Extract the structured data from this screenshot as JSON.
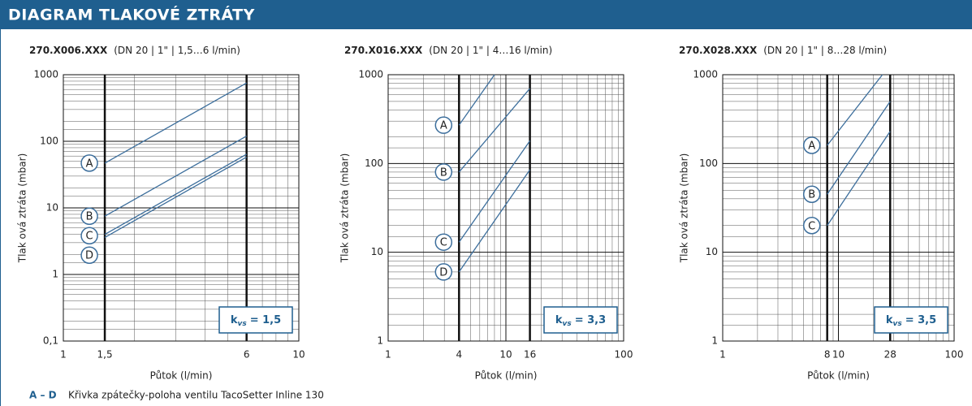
{
  "header": {
    "title": "DIAGRAM TLAKOVÉ ZTRÁTY"
  },
  "chart_data": [
    {
      "type": "line",
      "title": "270.X006.XXX",
      "subtitle": "(DN 20 | 1\" | 1,5…6 l/min)",
      "xlabel": "Půtok (l/min)",
      "ylabel": "Tlak ová ztráta (mbar)",
      "xscale": "log",
      "yscale": "log",
      "grid": true,
      "minor_grid": true,
      "xlim": [
        1,
        10
      ],
      "ylim": [
        0.1,
        1000
      ],
      "xticks": [
        1,
        {
          "value": 1.5,
          "label": "1,5"
        },
        6,
        10
      ],
      "yticks": [
        {
          "value": 0.1,
          "label": "0,1"
        },
        1,
        10,
        100,
        1000
      ],
      "kvs": {
        "symbol": "k",
        "sub": "vs",
        "value": "= 1,5"
      },
      "series": [
        {
          "name": "A",
          "color": "#3c6e9c",
          "x": [
            1.5,
            6
          ],
          "values": [
            47,
            750
          ]
        },
        {
          "name": "B",
          "color": "#3c6e9c",
          "x": [
            1.5,
            6
          ],
          "values": [
            7.5,
            120
          ]
        },
        {
          "name": "C",
          "color": "#3c6e9c",
          "x": [
            1.5,
            6
          ],
          "values": [
            4,
            64
          ]
        },
        {
          "name": "D",
          "color": "#3c6e9c",
          "x": [
            1.5,
            6
          ],
          "values": [
            3.6,
            58
          ]
        }
      ]
    },
    {
      "type": "line",
      "title": "270.X016.XXX",
      "subtitle": "(DN 20 | 1\" | 4…16 l/min)",
      "xlabel": "Půtok (l/min)",
      "ylabel": "Tlak ová ztráta (mbar)",
      "xscale": "log",
      "yscale": "log",
      "grid": true,
      "minor_grid": true,
      "xlim": [
        1,
        100
      ],
      "ylim": [
        1,
        1000
      ],
      "xticks": [
        1,
        4,
        10,
        16,
        100
      ],
      "yticks": [
        1,
        10,
        100,
        1000
      ],
      "kvs": {
        "symbol": "k",
        "sub": "vs",
        "value": "= 3,3"
      },
      "series": [
        {
          "name": "A",
          "color": "#3c6e9c",
          "x": [
            4,
            8
          ],
          "values": [
            270,
            1000
          ]
        },
        {
          "name": "B",
          "color": "#3c6e9c",
          "x": [
            4,
            16
          ],
          "values": [
            80,
            700
          ]
        },
        {
          "name": "C",
          "color": "#3c6e9c",
          "x": [
            4,
            16
          ],
          "values": [
            13,
            180
          ]
        },
        {
          "name": "D",
          "color": "#3c6e9c",
          "x": [
            4,
            16
          ],
          "values": [
            6,
            85
          ]
        }
      ]
    },
    {
      "type": "line",
      "title": "270.X028.XXX",
      "subtitle": "(DN 20 | 1\" | 8…28 l/min)",
      "xlabel": "Půtok (l/min)",
      "ylabel": "Tlak ová ztráta (mbar)",
      "xscale": "log",
      "yscale": "log",
      "grid": true,
      "minor_grid": true,
      "xlim": [
        1,
        100
      ],
      "ylim": [
        1,
        1000
      ],
      "xticks": [
        1,
        8,
        10,
        28,
        100
      ],
      "yticks": [
        1,
        10,
        100,
        1000
      ],
      "kvs": {
        "symbol": "k",
        "sub": "vs",
        "value": "= 3,5"
      },
      "series": [
        {
          "name": "A",
          "color": "#3c6e9c",
          "x": [
            8,
            24
          ],
          "values": [
            160,
            1000
          ]
        },
        {
          "name": "B",
          "color": "#3c6e9c",
          "x": [
            8,
            28
          ],
          "values": [
            45,
            500
          ]
        },
        {
          "name": "C",
          "color": "#3c6e9c",
          "x": [
            8,
            28
          ],
          "values": [
            20,
            230
          ]
        }
      ]
    }
  ],
  "footer": {
    "key": "A – D",
    "text": "Křivka zpátečky-poloha ventilu TacoSetter Inline 130"
  }
}
